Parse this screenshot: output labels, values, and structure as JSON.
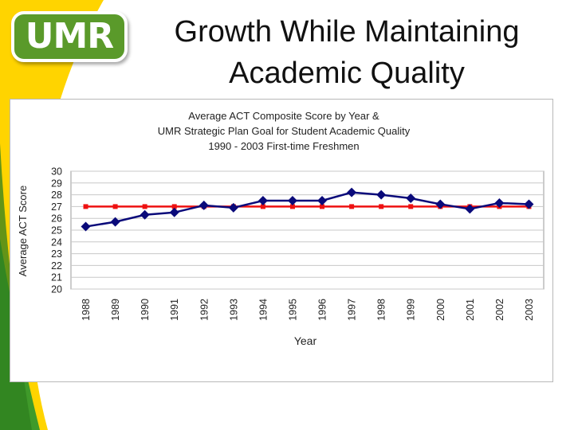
{
  "slide": {
    "logo_text": "UMR",
    "title_line1": "Growth While Maintaining",
    "title_line2": "Academic Quality"
  },
  "colors": {
    "score_series": "#0a0a7a",
    "goal_series": "#ee1111",
    "logo_green": "#5a9a2a",
    "swoosh_yellow": "#ffd400",
    "swoosh_green": "#3f9a2a"
  },
  "chart_data": {
    "type": "line",
    "title_lines": [
      "Average ACT Composite Score by Year &",
      "UMR Strategic Plan Goal for Student Academic Quality",
      "1990 - 2003 First-time Freshmen"
    ],
    "xlabel": "Year",
    "ylabel": "Average ACT Score",
    "ylim": [
      20,
      30
    ],
    "yticks": [
      20,
      21,
      22,
      23,
      24,
      25,
      26,
      27,
      28,
      29,
      30
    ],
    "grid": true,
    "legend": "none",
    "categories": [
      "1988",
      "1989",
      "1990",
      "1991",
      "1992",
      "1993",
      "1994",
      "1995",
      "1996",
      "1997",
      "1998",
      "1999",
      "2000",
      "2001",
      "2002",
      "2003"
    ],
    "series": [
      {
        "values": [
          25.3,
          25.7,
          26.3,
          26.5,
          27.1,
          26.9,
          27.5,
          27.5,
          27.5,
          28.2,
          28.0,
          27.7,
          27.2,
          26.8,
          27.3,
          27.2
        ]
      },
      {
        "values": [
          27,
          27,
          27,
          27,
          27,
          27,
          27,
          27,
          27,
          27,
          27,
          27,
          27,
          27,
          27,
          27
        ]
      }
    ]
  }
}
